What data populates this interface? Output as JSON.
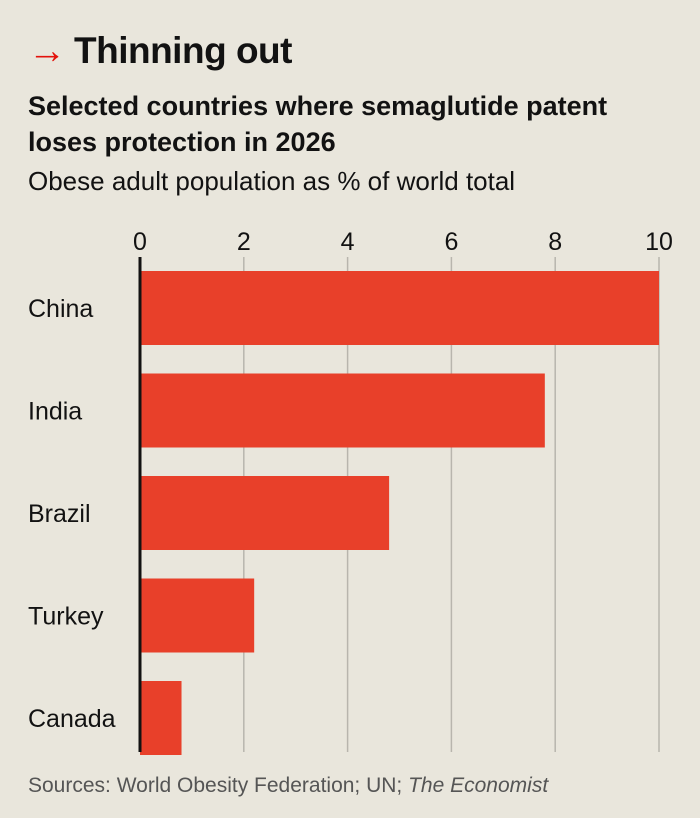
{
  "header": {
    "arrow": "→",
    "title": "Thinning out",
    "subtitle": "Selected countries where semaglutide patent loses protection in 2026",
    "units": "Obese adult population as % of world total"
  },
  "chart_data": {
    "type": "bar",
    "orientation": "horizontal",
    "categories": [
      "China",
      "India",
      "Brazil",
      "Turkey",
      "Canada"
    ],
    "values": [
      10.0,
      7.8,
      4.8,
      2.2,
      0.8
    ],
    "xlim": [
      0,
      10
    ],
    "xticks": [
      0,
      2,
      4,
      6,
      8,
      10
    ],
    "grid": true,
    "bar_color": "#e8402a",
    "grid_color": "#b8b5ad"
  },
  "source": {
    "prefix": "Sources: World Obesity Federation; UN; ",
    "publication": "The Economist"
  }
}
